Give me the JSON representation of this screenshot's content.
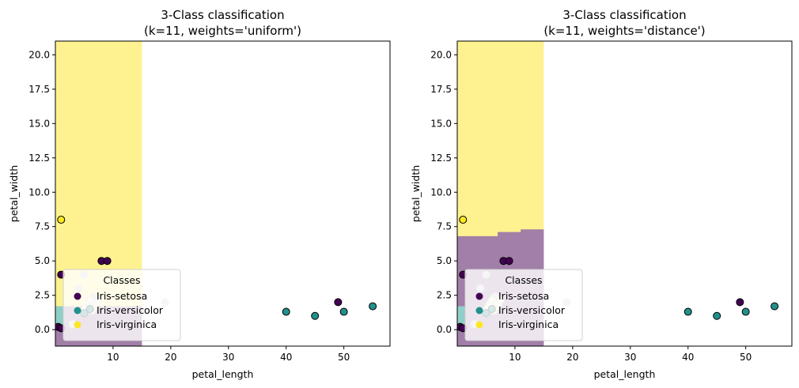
{
  "chart_data": [
    {
      "type": "scatter",
      "title": "3-Class classification\n(k=11, weights='uniform')",
      "xlabel": "petal_length",
      "ylabel": "petal_width",
      "xlim": [
        0,
        58
      ],
      "ylim": [
        -1.2,
        21
      ],
      "xticks": [
        10,
        20,
        30,
        40,
        50
      ],
      "yticks": [
        0.0,
        2.5,
        5.0,
        7.5,
        10.0,
        12.5,
        15.0,
        17.5,
        20.0
      ],
      "decision_regions": [
        {
          "class": "Iris-virginica",
          "x": [
            0,
            15
          ],
          "y": [
            -1.2,
            21
          ]
        },
        {
          "class": "Iris-setosa",
          "x": [
            0,
            15
          ],
          "y": [
            -1.2,
            1.7
          ]
        },
        {
          "class": "Iris-versicolor",
          "x": [
            0,
            1.4
          ],
          "y": [
            0,
            1.7
          ]
        }
      ],
      "legend": {
        "title": "Classes",
        "location": "lower-left",
        "entries": [
          "Iris-setosa",
          "Iris-versicolor",
          "Iris-virginica"
        ]
      },
      "series": [
        {
          "name": "Iris-setosa",
          "points": [
            [
              1,
              4
            ],
            [
              8,
              5
            ],
            [
              9,
              5
            ],
            [
              49,
              2
            ],
            [
              0.5,
              0.2
            ],
            [
              1.0,
              0.1
            ]
          ]
        },
        {
          "name": "Iris-versicolor",
          "points": [
            [
              40,
              1.3
            ],
            [
              45,
              1.0
            ],
            [
              50,
              1.3
            ],
            [
              55,
              1.7
            ],
            [
              5,
              1.2
            ],
            [
              6,
              1.5
            ]
          ]
        },
        {
          "name": "Iris-virginica",
          "points": [
            [
              1,
              8
            ]
          ]
        }
      ],
      "overlapping_points": [
        [
          5,
          4
        ],
        [
          19,
          2
        ],
        [
          4,
          3
        ],
        [
          3,
          0.4
        ],
        [
          7,
          2
        ],
        [
          6.5,
          2.4
        ]
      ]
    },
    {
      "type": "scatter",
      "title": "3-Class classification\n(k=11, weights='distance')",
      "xlabel": "petal_length",
      "ylabel": "petal_width",
      "xlim": [
        0,
        58
      ],
      "ylim": [
        -1.2,
        21
      ],
      "xticks": [
        10,
        20,
        30,
        40,
        50
      ],
      "yticks": [
        0.0,
        2.5,
        5.0,
        7.5,
        10.0,
        12.5,
        15.0,
        17.5,
        20.0
      ],
      "decision_regions": [
        {
          "class": "Iris-virginica",
          "x": [
            0,
            15
          ],
          "y": [
            -1.2,
            21
          ]
        },
        {
          "class": "Iris-setosa",
          "x": [
            0,
            15
          ],
          "y": [
            -1.2,
            7.0
          ],
          "step_top": [
            [
              0,
              6.8
            ],
            [
              7,
              7.1
            ],
            [
              11,
              7.3
            ],
            [
              15,
              7.3
            ]
          ]
        },
        {
          "class": "Iris-versicolor",
          "x": [
            0,
            1.4
          ],
          "y": [
            0,
            1.7
          ]
        }
      ],
      "legend": {
        "title": "Classes",
        "location": "lower-left",
        "entries": [
          "Iris-setosa",
          "Iris-versicolor",
          "Iris-virginica"
        ]
      },
      "series": [
        {
          "name": "Iris-setosa",
          "points": [
            [
              1,
              4
            ],
            [
              8,
              5
            ],
            [
              9,
              5
            ],
            [
              49,
              2
            ],
            [
              0.5,
              0.2
            ],
            [
              1.0,
              0.1
            ]
          ]
        },
        {
          "name": "Iris-versicolor",
          "points": [
            [
              40,
              1.3
            ],
            [
              45,
              1.0
            ],
            [
              50,
              1.3
            ],
            [
              55,
              1.7
            ],
            [
              5,
              1.2
            ],
            [
              6,
              1.5
            ]
          ]
        },
        {
          "name": "Iris-virginica",
          "points": [
            [
              1,
              8
            ]
          ]
        }
      ],
      "overlapping_points": [
        [
          5,
          4
        ],
        [
          19,
          2
        ],
        [
          4,
          3
        ],
        [
          3,
          0.4
        ],
        [
          7,
          2
        ],
        [
          6.5,
          2.4
        ]
      ]
    }
  ],
  "colors": {
    "Iris-setosa": "#440154",
    "Iris-versicolor": "#21918c",
    "Iris-virginica": "#fde725",
    "region-setosa": "#a17fa8",
    "region-versicolor": "#8fcfc8",
    "region-virginica": "#fdf28f",
    "overlap-point": "#cfcfcf"
  }
}
